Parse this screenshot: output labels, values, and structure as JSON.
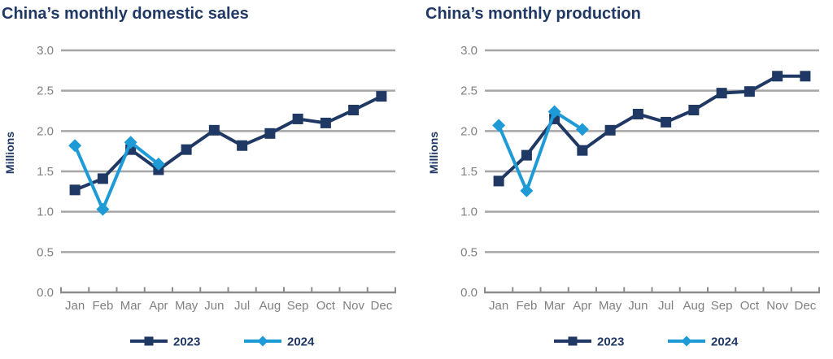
{
  "colors": {
    "title_text": "#1F3864",
    "axis_text": "#808080",
    "gridline": "#A6A6A6",
    "axis_line": "#8C8C8C",
    "series_2023": "#1F3864",
    "series_2024": "#1E9BD7"
  },
  "chart_data": [
    {
      "type": "line",
      "title": "China’s monthly domestic sales",
      "ylabel": "Millions",
      "xlabel": "",
      "categories": [
        "Jan",
        "Feb",
        "Mar",
        "Apr",
        "May",
        "Jun",
        "Jul",
        "Aug",
        "Sep",
        "Oct",
        "Nov",
        "Dec"
      ],
      "ylim": [
        0.0,
        3.0
      ],
      "yticks": [
        0.0,
        0.5,
        1.0,
        1.5,
        2.0,
        2.5,
        3.0
      ],
      "ytick_labels": [
        "0.0",
        "0.5",
        "1.0",
        "1.5",
        "2.0",
        "2.5",
        "3.0"
      ],
      "grid": true,
      "legend_position": "bottom",
      "series": [
        {
          "name": "2023",
          "color": "#1F3864",
          "marker": "square",
          "values": [
            1.27,
            1.41,
            1.77,
            1.52,
            1.77,
            2.01,
            1.82,
            1.97,
            2.15,
            2.1,
            2.26,
            2.43
          ]
        },
        {
          "name": "2024",
          "color": "#1E9BD7",
          "marker": "diamond",
          "values": [
            1.82,
            1.03,
            1.86,
            1.59
          ]
        }
      ]
    },
    {
      "type": "line",
      "title": "China’s monthly production",
      "ylabel": "Millions",
      "xlabel": "",
      "categories": [
        "Jan",
        "Feb",
        "Mar",
        "Apr",
        "May",
        "Jun",
        "Jul",
        "Aug",
        "Sep",
        "Oct",
        "Nov",
        "Dec"
      ],
      "ylim": [
        0.0,
        3.0
      ],
      "yticks": [
        0.0,
        0.5,
        1.0,
        1.5,
        2.0,
        2.5,
        3.0
      ],
      "ytick_labels": [
        "0.0",
        "0.5",
        "1.0",
        "1.5",
        "2.0",
        "2.5",
        "3.0"
      ],
      "grid": true,
      "legend_position": "bottom",
      "series": [
        {
          "name": "2023",
          "color": "#1F3864",
          "marker": "square",
          "values": [
            1.38,
            1.7,
            2.15,
            1.76,
            2.01,
            2.21,
            2.11,
            2.26,
            2.47,
            2.49,
            2.68,
            2.68
          ]
        },
        {
          "name": "2024",
          "color": "#1E9BD7",
          "marker": "diamond",
          "values": [
            2.07,
            1.26,
            2.24,
            2.02
          ]
        }
      ]
    }
  ]
}
